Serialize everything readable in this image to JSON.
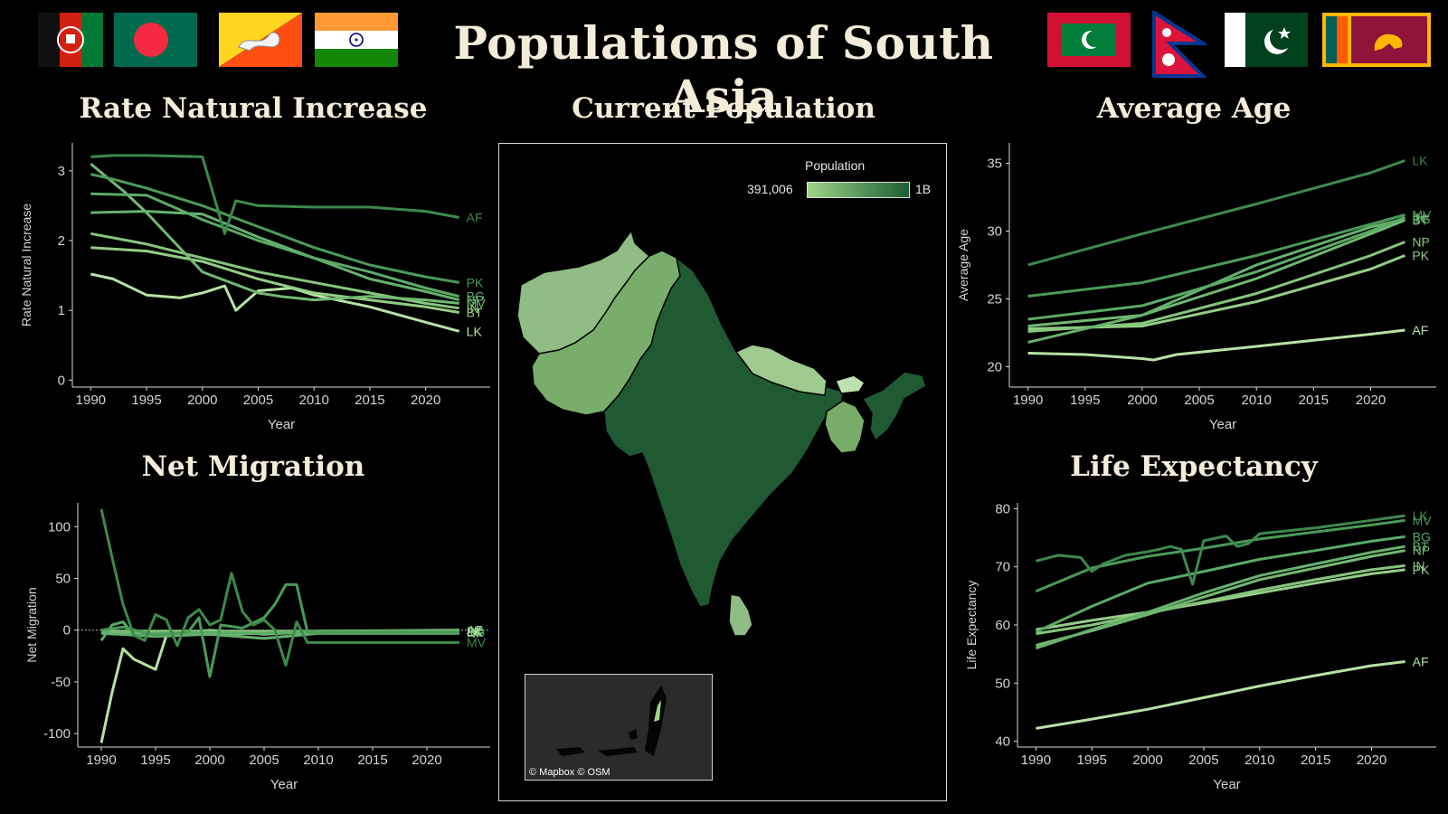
{
  "header": {
    "title": "Populations of South Asia",
    "flags_left": [
      "afghanistan-flag",
      "bangladesh-flag",
      "bhutan-flag",
      "india-flag"
    ],
    "flags_right": [
      "maldives-flag",
      "nepal-flag",
      "pakistan-flag",
      "sri-lanka-flag"
    ]
  },
  "map": {
    "title": "Current Population",
    "legend_title": "Population",
    "legend_min": "391,006",
    "legend_max": "1B",
    "credit": "© Mapbox © OSM",
    "colors": {
      "low": "#9ed58a",
      "high": "#1b5e32"
    }
  },
  "colors": {
    "background": "#000000",
    "title": "#f2ecd9",
    "axis": "#d9d9d9"
  },
  "chart_data": [
    {
      "id": "rni",
      "type": "line",
      "title": "Rate Natural Increase",
      "xlabel": "Year",
      "ylabel": "Rate Natural Increase",
      "xlim": [
        1989,
        2024
      ],
      "ylim": [
        -0.1,
        3.4
      ],
      "xticks": [
        1990,
        1995,
        2000,
        2005,
        2010,
        2015,
        2020
      ],
      "yticks": [
        0,
        1,
        2,
        3
      ],
      "series": [
        {
          "name": "AF",
          "color": "#3d8a4c",
          "x": [
            1990,
            1992,
            1995,
            1998,
            2000,
            2002,
            2003,
            2005,
            2010,
            2015,
            2020,
            2023
          ],
          "y": [
            3.2,
            3.22,
            3.22,
            3.21,
            3.2,
            2.1,
            2.57,
            2.5,
            2.48,
            2.48,
            2.42,
            2.33
          ]
        },
        {
          "name": "PK",
          "color": "#4a9b58",
          "x": [
            1990,
            1992,
            1995,
            2000,
            2005,
            2010,
            2015,
            2020,
            2023
          ],
          "y": [
            2.95,
            2.88,
            2.75,
            2.5,
            2.2,
            1.9,
            1.65,
            1.48,
            1.4
          ]
        },
        {
          "name": "BG",
          "color": "#5bab66",
          "x": [
            1990,
            1995,
            2000,
            2005,
            2010,
            2015,
            2020,
            2023
          ],
          "y": [
            2.67,
            2.65,
            2.3,
            2.0,
            1.75,
            1.55,
            1.32,
            1.2
          ]
        },
        {
          "name": "NP",
          "color": "#66b26e",
          "x": [
            1990,
            1995,
            2000,
            2005,
            2010,
            2015,
            2020,
            2023
          ],
          "y": [
            2.4,
            2.42,
            2.38,
            2.05,
            1.75,
            1.45,
            1.27,
            1.15
          ]
        },
        {
          "name": "MV",
          "color": "#72b972",
          "x": [
            1990,
            1993,
            1995,
            2000,
            2005,
            2007,
            2010,
            2015,
            2020,
            2023
          ],
          "y": [
            3.1,
            2.7,
            2.4,
            1.55,
            1.25,
            1.2,
            1.15,
            1.2,
            1.15,
            1.1
          ]
        },
        {
          "name": "IN",
          "color": "#86c57c",
          "x": [
            1990,
            1995,
            2000,
            2005,
            2010,
            2015,
            2020,
            2023
          ],
          "y": [
            2.1,
            1.95,
            1.75,
            1.55,
            1.4,
            1.25,
            1.1,
            1.03
          ]
        },
        {
          "name": "BT",
          "color": "#94cd86",
          "x": [
            1990,
            1995,
            2000,
            2005,
            2010,
            2015,
            2020,
            2023
          ],
          "y": [
            1.9,
            1.85,
            1.7,
            1.45,
            1.25,
            1.15,
            1.05,
            0.97
          ]
        },
        {
          "name": "LK",
          "color": "#b6e3a4",
          "x": [
            1990,
            1992,
            1995,
            1998,
            2000,
            2002,
            2003,
            2005,
            2008,
            2010,
            2015,
            2020,
            2023
          ],
          "y": [
            1.52,
            1.45,
            1.22,
            1.18,
            1.25,
            1.35,
            1.0,
            1.28,
            1.32,
            1.22,
            1.05,
            0.83,
            0.7
          ]
        }
      ]
    },
    {
      "id": "age",
      "type": "line",
      "title": "Average Age",
      "xlabel": "Year",
      "ylabel": "Average Age",
      "xlim": [
        1989,
        2024
      ],
      "ylim": [
        18.5,
        36.5
      ],
      "xticks": [
        1990,
        1995,
        2000,
        2005,
        2010,
        2015,
        2020
      ],
      "yticks": [
        20,
        25,
        30,
        35
      ],
      "series": [
        {
          "name": "LK",
          "color": "#3d8a4c",
          "x": [
            1990,
            2000,
            2010,
            2020,
            2023
          ],
          "y": [
            27.5,
            29.8,
            32.0,
            34.3,
            35.2
          ]
        },
        {
          "name": "MV",
          "color": "#4a9b58",
          "x": [
            1990,
            2000,
            2010,
            2020,
            2023
          ],
          "y": [
            25.2,
            26.2,
            28.2,
            30.5,
            31.2
          ]
        },
        {
          "name": "IN",
          "color": "#5bab66",
          "x": [
            1990,
            2000,
            2010,
            2020,
            2023
          ],
          "y": [
            23.5,
            24.5,
            27.0,
            30.0,
            31.0
          ]
        },
        {
          "name": "BG",
          "color": "#66b26e",
          "x": [
            1990,
            2000,
            2010,
            2020,
            2023
          ],
          "y": [
            21.8,
            23.8,
            27.5,
            30.3,
            30.9
          ]
        },
        {
          "name": "BT",
          "color": "#72b972",
          "x": [
            1990,
            2000,
            2010,
            2020,
            2023
          ],
          "y": [
            23.0,
            23.8,
            26.5,
            29.8,
            30.8
          ]
        },
        {
          "name": "NP",
          "color": "#86c57c",
          "x": [
            1990,
            2000,
            2010,
            2020,
            2023
          ],
          "y": [
            22.6,
            23.2,
            25.4,
            28.2,
            29.2
          ]
        },
        {
          "name": "PK",
          "color": "#94cd86",
          "x": [
            1990,
            2000,
            2010,
            2020,
            2023
          ],
          "y": [
            22.8,
            23.0,
            24.8,
            27.2,
            28.2
          ]
        },
        {
          "name": "AF",
          "color": "#b6e3a4",
          "x": [
            1990,
            1995,
            2000,
            2001,
            2003,
            2010,
            2020,
            2023
          ],
          "y": [
            21.0,
            20.9,
            20.6,
            20.5,
            20.9,
            21.5,
            22.4,
            22.7
          ]
        }
      ]
    },
    {
      "id": "mig",
      "type": "line",
      "title": "Net Migration",
      "xlabel": "Year",
      "ylabel": "Net Migration",
      "xlim": [
        1988.5,
        2024
      ],
      "ylim": [
        -113,
        123
      ],
      "xticks": [
        1990,
        1995,
        2000,
        2005,
        2010,
        2015,
        2020
      ],
      "yticks": [
        100,
        50,
        0,
        -50,
        -100
      ],
      "zero_line": true,
      "series": [
        {
          "name": "MV",
          "color": "#3d8a4c",
          "x": [
            1990,
            1991,
            1992,
            1993,
            1994,
            1995,
            1996,
            1997,
            1998,
            1999,
            2000,
            2001,
            2002,
            2003,
            2004,
            2005,
            2006,
            2007,
            2008,
            2009,
            2023
          ],
          "y": [
            117,
            70,
            25,
            -5,
            -10,
            15,
            10,
            -15,
            12,
            20,
            5,
            10,
            55,
            18,
            5,
            10,
            0,
            -34,
            8,
            -12,
            -12
          ]
        },
        {
          "name": "BG",
          "color": "#4a9b58",
          "x": [
            1990,
            1992,
            1995,
            1998,
            1999,
            2000,
            2001,
            2003,
            2005,
            2006,
            2007,
            2008,
            2009,
            2023
          ],
          "y": [
            0,
            3,
            -5,
            -2,
            12,
            -45,
            5,
            2,
            12,
            25,
            44,
            44,
            -2,
            -2
          ]
        },
        {
          "name": "BT",
          "color": "#5bab66",
          "x": [
            1990,
            1991,
            1992,
            1993,
            1995,
            2000,
            2005,
            2010,
            2023
          ],
          "y": [
            -10,
            5,
            8,
            -5,
            -3,
            -2,
            -3,
            -1,
            -1
          ]
        },
        {
          "name": "NP",
          "color": "#66b26e",
          "x": [
            1990,
            1995,
            2000,
            2005,
            2010,
            2023
          ],
          "y": [
            -3,
            -6,
            -4,
            -8,
            -3,
            -3
          ]
        },
        {
          "name": "PK",
          "color": "#72b972",
          "x": [
            1990,
            1995,
            2000,
            2005,
            2010,
            2023
          ],
          "y": [
            -2,
            -3,
            -4,
            -3,
            -2,
            -2
          ]
        },
        {
          "name": "IN",
          "color": "#86c57c",
          "x": [
            1990,
            1995,
            2000,
            2005,
            2010,
            2023
          ],
          "y": [
            -1,
            -1,
            -1,
            -1,
            -1,
            -1
          ]
        },
        {
          "name": "AF",
          "color": "#94cd86",
          "x": [
            1990,
            1991,
            1993,
            1995,
            1997,
            2000,
            2005,
            2010,
            2023
          ],
          "y": [
            0,
            -2,
            -5,
            -5,
            -3,
            0,
            -4,
            -1,
            0
          ]
        },
        {
          "name": "LK",
          "color": "#b6e3a4",
          "x": [
            1990,
            1991,
            1992,
            1993,
            1994,
            1995,
            1996,
            1997,
            2000,
            2005,
            2010,
            2023
          ],
          "y": [
            -109,
            -60,
            -18,
            -28,
            -33,
            -38,
            -5,
            -2,
            -4,
            -3,
            -1,
            -1
          ]
        }
      ]
    },
    {
      "id": "life",
      "type": "line",
      "title": "Life Expectancy",
      "xlabel": "Year",
      "ylabel": "Life Expectancy",
      "xlim": [
        1989,
        2024
      ],
      "ylim": [
        39,
        81
      ],
      "xticks": [
        1990,
        1995,
        2000,
        2005,
        2010,
        2015,
        2020
      ],
      "yticks": [
        40,
        50,
        60,
        70,
        80
      ],
      "series": [
        {
          "name": "LK",
          "color": "#3d8a4c",
          "x": [
            1990,
            1992,
            1994,
            1995,
            1996,
            1998,
            2000,
            2001,
            2002,
            2003,
            2004,
            2005,
            2007,
            2008,
            2009,
            2010,
            2015,
            2020,
            2023
          ],
          "y": [
            71,
            72,
            71.6,
            69.2,
            70.5,
            72,
            72.6,
            73,
            73.5,
            73,
            67,
            74.5,
            75.3,
            73.5,
            74,
            75.7,
            76.7,
            78,
            78.8
          ]
        },
        {
          "name": "MV",
          "color": "#4a9b58",
          "x": [
            1990,
            1995,
            2000,
            2005,
            2010,
            2015,
            2020,
            2023
          ],
          "y": [
            65.8,
            69.8,
            71.8,
            73.2,
            74.8,
            76,
            77.2,
            78
          ]
        },
        {
          "name": "BG",
          "color": "#5bab66",
          "x": [
            1990,
            1995,
            2000,
            2005,
            2010,
            2015,
            2020,
            2023
          ],
          "y": [
            58.8,
            63.2,
            67.2,
            69.2,
            71.3,
            72.8,
            74.4,
            75.2
          ]
        },
        {
          "name": "BT",
          "color": "#66b26e",
          "x": [
            1990,
            1995,
            2000,
            2005,
            2010,
            2015,
            2020,
            2023
          ],
          "y": [
            56,
            59.2,
            62.2,
            65.5,
            68.5,
            70.5,
            72.5,
            73.5
          ]
        },
        {
          "name": "NP",
          "color": "#72b972",
          "x": [
            1990,
            1995,
            2000,
            2005,
            2010,
            2015,
            2020,
            2023
          ],
          "y": [
            56.5,
            59,
            61.8,
            64.8,
            67.8,
            69.8,
            71.8,
            72.8
          ]
        },
        {
          "name": "IN",
          "color": "#86c57c",
          "x": [
            1990,
            1995,
            2000,
            2005,
            2010,
            2015,
            2020,
            2023
          ],
          "y": [
            58.5,
            60,
            62,
            64,
            66,
            67.8,
            69.5,
            70.2
          ]
        },
        {
          "name": "PK",
          "color": "#94cd86",
          "x": [
            1990,
            1995,
            2000,
            2005,
            2010,
            2015,
            2020,
            2023
          ],
          "y": [
            59.2,
            60.8,
            62.2,
            63.8,
            65.5,
            67.2,
            68.8,
            69.5
          ]
        },
        {
          "name": "AF",
          "color": "#b6e3a4",
          "x": [
            1990,
            1995,
            2000,
            2005,
            2010,
            2015,
            2020,
            2023
          ],
          "y": [
            42.2,
            43.8,
            45.5,
            47.5,
            49.5,
            51.3,
            53,
            53.7
          ]
        }
      ]
    }
  ]
}
